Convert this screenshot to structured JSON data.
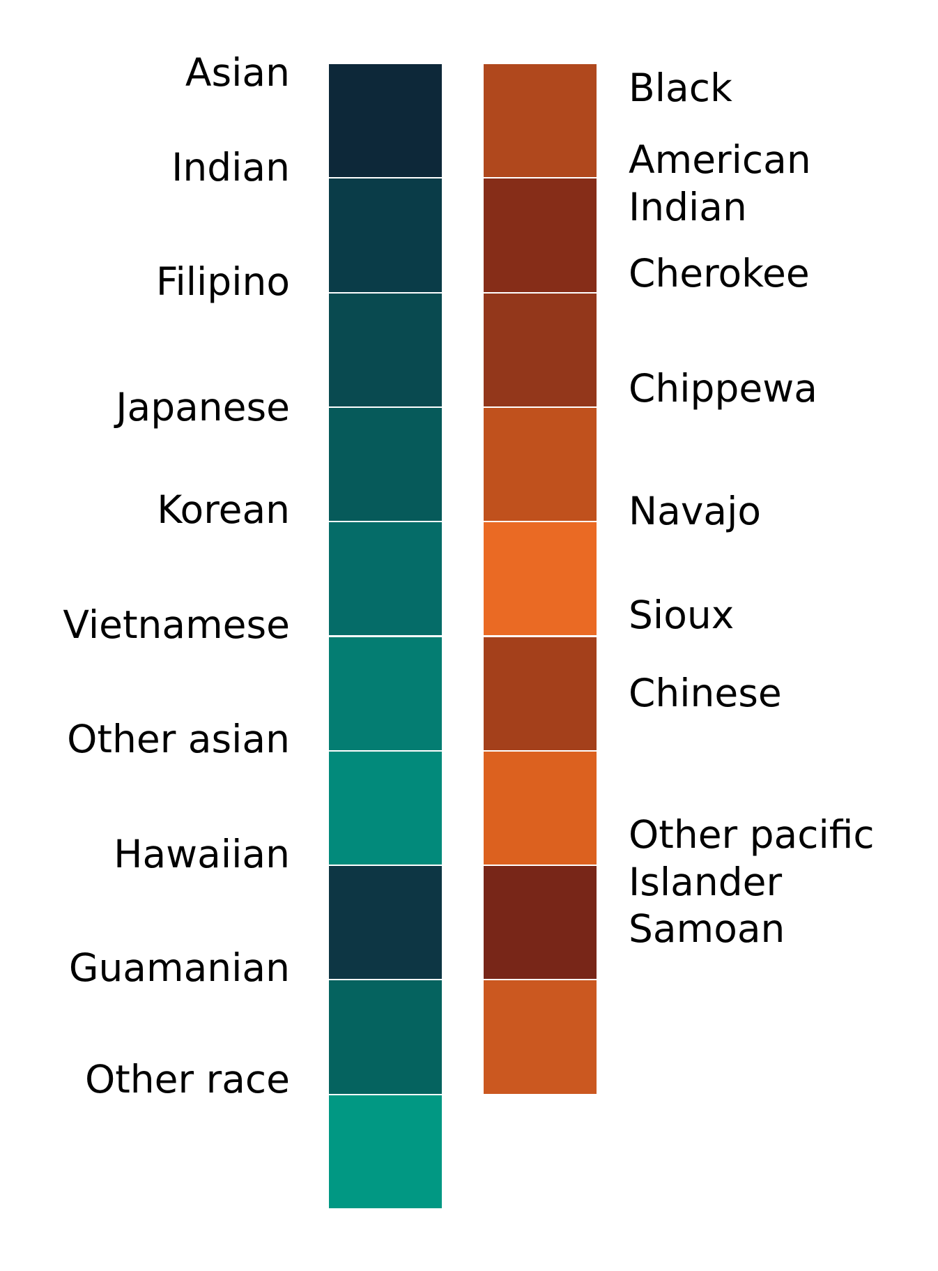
{
  "left_column": {
    "items": [
      {
        "label": "Asian",
        "color": "#0d2839"
      },
      {
        "label": "Indian",
        "color": "#0a3c48"
      },
      {
        "label": "Filipino",
        "color": "#094a50"
      },
      {
        "label": "Japanese",
        "color": "#065a5a"
      },
      {
        "label": "Korean",
        "color": "#056c68"
      },
      {
        "label": "Vietnamese",
        "color": "#047d72"
      },
      {
        "label": "Other asian",
        "color": "#028a7b"
      },
      {
        "label": "Hawaiian",
        "color": "#0d3644"
      },
      {
        "label": "Guamanian",
        "color": "#05635f"
      },
      {
        "label": "Other race",
        "color": "#019883"
      }
    ]
  },
  "right_column": {
    "items": [
      {
        "label": "Black",
        "color": "#b0481d"
      },
      {
        "label": "American\nIndian",
        "color": "#862d18"
      },
      {
        "label": "Cherokee",
        "color": "#93371b"
      },
      {
        "label": "Chippewa",
        "color": "#c0511d"
      },
      {
        "label": "Navajo",
        "color": "#ea6a24"
      },
      {
        "label": "Sioux",
        "color": "#a4401b"
      },
      {
        "label": "Chinese",
        "color": "#dc611f"
      },
      {
        "label": "Other pacific\nIslander",
        "color": "#782618"
      },
      {
        "label": "Samoan",
        "color": "#cb5820"
      }
    ]
  }
}
